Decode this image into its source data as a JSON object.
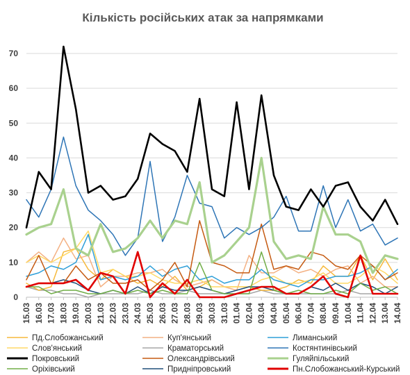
{
  "chart_data": {
    "type": "line",
    "title": "Кількість російських атак за напрямками",
    "xlabel": "",
    "ylabel": "",
    "ylim": [
      0,
      70
    ],
    "yticks": [
      0,
      10,
      20,
      30,
      40,
      50,
      60,
      70
    ],
    "grid": true,
    "legend_position": "bottom",
    "categories": [
      "15.03",
      "16.03",
      "17.03",
      "18.03",
      "19.03",
      "20.03",
      "21.03",
      "22.03",
      "23.03",
      "24.03",
      "25.03",
      "26.03",
      "27.03",
      "28.03",
      "29.03",
      "30.03",
      "31.03",
      "01.04",
      "02.04",
      "03.04",
      "04.04",
      "05.04",
      "06.04",
      "07.04",
      "08.04",
      "09.04",
      "10.04",
      "11.04",
      "12.04",
      "13.04",
      "14.04"
    ],
    "series": [
      {
        "name": "Пд.Слобожанський",
        "color": "#f6b93b",
        "values": [
          4,
          2,
          3,
          13,
          14,
          8,
          5,
          8,
          6,
          4,
          5,
          3,
          6,
          2,
          3,
          5,
          3,
          3,
          3,
          2,
          2,
          3,
          5,
          4,
          9,
          6,
          6,
          12,
          5,
          11,
          5
        ]
      },
      {
        "name": "Куп'янський",
        "color": "#f4b183",
        "values": [
          10,
          13,
          10,
          17,
          11,
          12,
          3,
          6,
          6,
          7,
          7,
          8,
          5,
          3,
          4,
          5,
          3,
          2,
          12,
          7,
          7,
          9,
          7,
          8,
          6,
          8,
          9,
          4,
          6,
          3,
          3
        ]
      },
      {
        "name": "Лиманський",
        "color": "#2e9fd8",
        "values": [
          6,
          7,
          9,
          8,
          10,
          18,
          5,
          6,
          5,
          6,
          9,
          6,
          8,
          9,
          5,
          6,
          4,
          5,
          5,
          8,
          5,
          4,
          3,
          5,
          5,
          6,
          6,
          7,
          9,
          5,
          8
        ]
      },
      {
        "name": "Слов'янський",
        "color": "#ffd966",
        "values": [
          10,
          12,
          10,
          12,
          14,
          19,
          7,
          8,
          6,
          6,
          7,
          5,
          4,
          4,
          5,
          3,
          3,
          3,
          3,
          5,
          6,
          4,
          4,
          5,
          7,
          4,
          4,
          6,
          9,
          7,
          4
        ]
      },
      {
        "name": "Краматорський",
        "color": "#a6a6a6",
        "values": [
          3,
          2,
          2,
          1,
          1,
          0,
          1,
          1,
          1,
          1,
          2,
          1,
          1,
          2,
          1,
          1,
          1,
          1,
          1,
          2,
          1,
          1,
          1,
          1,
          1,
          1,
          2,
          1,
          1,
          1,
          1
        ]
      },
      {
        "name": "Костянтинівський",
        "color": "#2e75b6",
        "values": [
          28,
          23,
          31,
          46,
          32,
          25,
          22,
          18,
          12,
          17,
          39,
          16,
          23,
          35,
          27,
          26,
          17,
          20,
          18,
          20,
          23,
          29,
          19,
          19,
          32,
          20,
          28,
          19,
          21,
          15,
          17
        ]
      },
      {
        "name": "Покровський",
        "color": "#000000",
        "values": [
          20,
          36,
          31,
          72,
          54,
          30,
          32,
          28,
          29,
          34,
          47,
          44,
          42,
          36,
          57,
          31,
          29,
          56,
          31,
          58,
          35,
          26,
          25,
          31,
          26,
          32,
          33,
          26,
          22,
          28,
          21
        ]
      },
      {
        "name": "Олександрівський",
        "color": "#c55a11",
        "values": [
          5,
          12,
          4,
          4,
          9,
          5,
          7,
          4,
          4,
          5,
          2,
          5,
          10,
          3,
          22,
          10,
          9,
          7,
          7,
          21,
          8,
          9,
          8,
          13,
          12,
          9,
          8,
          12,
          9,
          5,
          7
        ]
      },
      {
        "name": "Гуляйпільський",
        "color": "#a9d18e",
        "values": [
          18,
          20,
          21,
          31,
          14,
          12,
          21,
          13,
          14,
          17,
          22,
          17,
          22,
          21,
          33,
          10,
          12,
          16,
          20,
          40,
          16,
          11,
          12,
          11,
          26,
          18,
          18,
          16,
          7,
          12,
          11
        ]
      },
      {
        "name": "Оріхівський",
        "color": "#70ad47",
        "values": [
          3,
          3,
          1,
          2,
          2,
          1,
          1,
          2,
          1,
          2,
          1,
          2,
          1,
          1,
          10,
          2,
          1,
          1,
          1,
          13,
          2,
          1,
          2,
          1,
          1,
          2,
          1,
          4,
          2,
          3,
          1
        ]
      },
      {
        "name": "Придніпровський",
        "color": "#1f4e79",
        "values": [
          3,
          4,
          4,
          5,
          4,
          2,
          1,
          2,
          1,
          3,
          1,
          3,
          2,
          2,
          3,
          2,
          1,
          2,
          3,
          3,
          2,
          1,
          1,
          3,
          2,
          4,
          2,
          4,
          3,
          1,
          3
        ]
      },
      {
        "name": "Пн.Слобожанський-Курський",
        "color": "#e00000",
        "values": [
          3,
          4,
          4,
          4,
          5,
          2,
          7,
          6,
          1,
          13,
          0,
          4,
          1,
          5,
          0,
          0,
          0,
          1,
          2,
          3,
          3,
          1,
          1,
          3,
          6,
          1,
          0,
          12,
          1,
          1,
          1
        ]
      }
    ]
  }
}
